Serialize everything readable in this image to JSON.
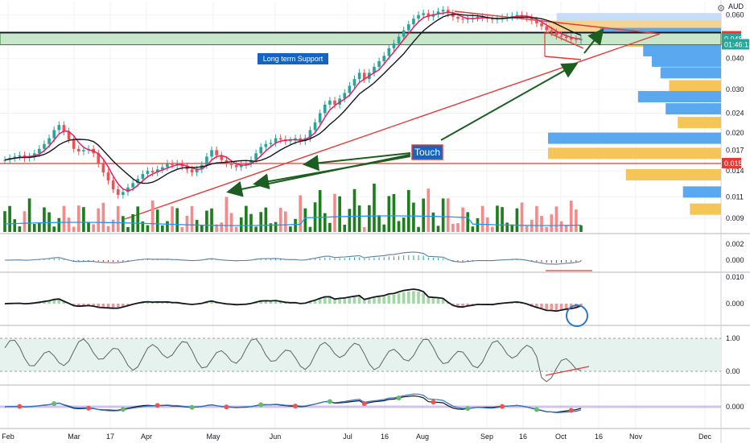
{
  "chart_data": {
    "type": "candlestick",
    "currency": "AUD",
    "price_axis_ticks": [
      "0.060",
      "0.049",
      "0.048",
      "0.040",
      "0.030",
      "0.024",
      "0.020",
      "0.017",
      "0.015",
      "0.014",
      "0.011",
      "0.009"
    ],
    "volume_profile_ticks": [
      "0.060",
      "0.049",
      "0.048",
      "0.040",
      "0.030",
      "0.024",
      "0.020",
      "0.017",
      "0.015",
      "0.014",
      "0.011",
      "0.009"
    ],
    "price_labels": [
      {
        "name": "resistance",
        "text": "0.049",
        "value": 0.049,
        "color": "#e53935"
      },
      {
        "name": "last-price",
        "text": "0.048",
        "value": 0.048,
        "color": "#26a69a"
      },
      {
        "name": "countdown",
        "text": "01:46:12",
        "value": 0.0455,
        "color": "#26a69a"
      },
      {
        "name": "support",
        "text": "0.015",
        "value": 0.015,
        "color": "#e53935"
      }
    ],
    "x_ticks": [
      "Feb",
      "Mar",
      "17",
      "Apr",
      "May",
      "Jun",
      "Jul",
      "16",
      "Aug",
      "Sep",
      "16",
      "Oct",
      "16",
      "Nov",
      "Dec"
    ],
    "annotations": [
      {
        "name": "long-term-support",
        "text": "Long term Support"
      },
      {
        "name": "touch",
        "text": "Touch"
      }
    ],
    "price_series": [
      0.0155,
      0.0158,
      0.016,
      0.0162,
      0.0158,
      0.016,
      0.0165,
      0.0172,
      0.018,
      0.019,
      0.0205,
      0.0215,
      0.0202,
      0.0188,
      0.0172,
      0.0168,
      0.017,
      0.0172,
      0.0165,
      0.015,
      0.0138,
      0.0128,
      0.0118,
      0.0112,
      0.0115,
      0.012,
      0.0125,
      0.013,
      0.0136,
      0.014,
      0.0138,
      0.0142,
      0.0145,
      0.015,
      0.0148,
      0.015,
      0.0146,
      0.0142,
      0.0138,
      0.0142,
      0.0148,
      0.016,
      0.017,
      0.0162,
      0.0155,
      0.015,
      0.0148,
      0.0145,
      0.0148,
      0.015,
      0.0155,
      0.0165,
      0.0175,
      0.018,
      0.0182,
      0.019,
      0.0188,
      0.0185,
      0.0186,
      0.019,
      0.0185,
      0.019,
      0.0205,
      0.022,
      0.024,
      0.026,
      0.027,
      0.026,
      0.0275,
      0.029,
      0.031,
      0.033,
      0.035,
      0.033,
      0.035,
      0.037,
      0.039,
      0.041,
      0.044,
      0.046,
      0.049,
      0.052,
      0.055,
      0.058,
      0.06,
      0.061,
      0.059,
      0.0605,
      0.062,
      0.063,
      0.061,
      0.059,
      0.058,
      0.0575,
      0.058,
      0.0585,
      0.059,
      0.0585,
      0.058,
      0.0575,
      0.058,
      0.0585,
      0.059,
      0.0595,
      0.06,
      0.0595,
      0.0585,
      0.057,
      0.0555,
      0.054,
      0.052,
      0.051,
      0.0495,
      0.049,
      0.0485,
      0.0478,
      0.0475,
      0.048
    ],
    "volume_profile": [
      {
        "price": 0.058,
        "length": 0.95,
        "color": "#c7dcf7"
      },
      {
        "price": 0.054,
        "length": 1.0,
        "color": "#f5d391"
      },
      {
        "price": 0.0505,
        "length": 0.7,
        "color": "#5aa9f0"
      },
      {
        "price": 0.047,
        "length": 0.55,
        "color": "#f5c557"
      },
      {
        "price": 0.043,
        "length": 0.45,
        "color": "#5aa9f0"
      },
      {
        "price": 0.039,
        "length": 0.4,
        "color": "#5aa9f0"
      },
      {
        "price": 0.035,
        "length": 0.35,
        "color": "#5aa9f0"
      },
      {
        "price": 0.031,
        "length": 0.3,
        "color": "#f5c557"
      },
      {
        "price": 0.028,
        "length": 0.48,
        "color": "#5aa9f0"
      },
      {
        "price": 0.025,
        "length": 0.32,
        "color": "#5aa9f0"
      },
      {
        "price": 0.022,
        "length": 0.25,
        "color": "#f5c557"
      },
      {
        "price": 0.019,
        "length": 1.0,
        "color": "#5aa9f0"
      },
      {
        "price": 0.0165,
        "length": 1.0,
        "color": "#f5c557"
      },
      {
        "price": 0.0135,
        "length": 0.55,
        "color": "#f5c557"
      },
      {
        "price": 0.0115,
        "length": 0.22,
        "color": "#5aa9f0"
      },
      {
        "price": 0.0098,
        "length": 0.18,
        "color": "#f5c557"
      }
    ],
    "indicator_ticks": {
      "macd_line": [
        "0.002",
        "0.000"
      ],
      "macd_hist": [
        "0.010",
        "0.000"
      ],
      "rsi": [
        "1.00",
        "0.00"
      ],
      "osc": [
        "0.000"
      ]
    },
    "colors": {
      "up": "#26a69a",
      "down": "#ef5350",
      "ma_fast": "#e91e63",
      "ma_slow": "#131722",
      "vol_up": "#1b7f1b",
      "vol_down": "#f48a8a",
      "support_zone": "#c8e6c9",
      "arrow": "#1b5e20"
    }
  }
}
